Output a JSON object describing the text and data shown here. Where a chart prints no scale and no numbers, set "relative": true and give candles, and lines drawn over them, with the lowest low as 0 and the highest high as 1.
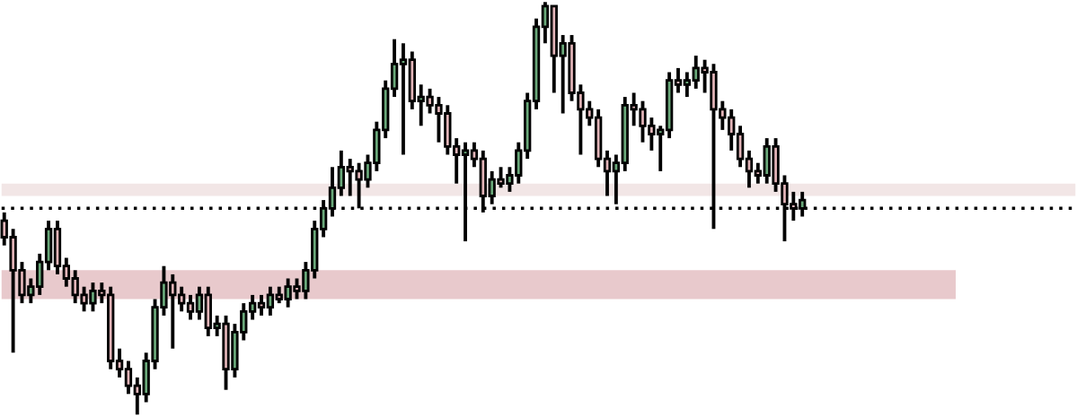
{
  "chart_data": {
    "type": "candlestick",
    "relative": true,
    "categories": [
      null,
      null,
      null,
      null,
      null,
      null,
      null,
      null,
      null,
      null,
      null,
      null,
      null,
      null,
      null,
      null,
      null,
      null,
      null,
      null,
      null,
      null,
      null,
      null,
      null,
      null,
      null,
      null,
      null,
      null,
      null,
      null,
      null,
      null,
      null,
      null,
      null,
      null,
      null,
      null,
      null,
      null,
      null,
      null,
      null,
      null,
      null,
      null,
      null,
      null,
      null,
      null,
      null,
      null,
      null,
      null,
      null,
      null,
      null,
      null,
      null,
      null,
      null,
      null,
      null,
      null,
      null,
      null,
      null,
      null,
      null,
      null,
      null,
      null,
      null,
      null,
      null,
      null,
      null,
      null,
      null,
      null,
      null,
      null,
      null,
      null,
      null,
      null,
      null,
      null,
      null
    ],
    "ohlc": [
      [
        0.47,
        0.49,
        0.41,
        0.43
      ],
      [
        0.43,
        0.45,
        0.15,
        0.35
      ],
      [
        0.35,
        0.37,
        0.27,
        0.29
      ],
      [
        0.29,
        0.33,
        0.27,
        0.31
      ],
      [
        0.31,
        0.39,
        0.29,
        0.37
      ],
      [
        0.37,
        0.47,
        0.35,
        0.45
      ],
      [
        0.45,
        0.47,
        0.34,
        0.36
      ],
      [
        0.36,
        0.38,
        0.31,
        0.33
      ],
      [
        0.33,
        0.35,
        0.27,
        0.29
      ],
      [
        0.29,
        0.31,
        0.25,
        0.27
      ],
      [
        0.27,
        0.32,
        0.25,
        0.3
      ],
      [
        0.3,
        0.32,
        0.27,
        0.29
      ],
      [
        0.29,
        0.31,
        0.11,
        0.13
      ],
      [
        0.13,
        0.16,
        0.09,
        0.11
      ],
      [
        0.11,
        0.13,
        0.05,
        0.07
      ],
      [
        0.07,
        0.09,
        0.0,
        0.05
      ],
      [
        0.05,
        0.15,
        0.03,
        0.13
      ],
      [
        0.13,
        0.28,
        0.11,
        0.26
      ],
      [
        0.26,
        0.36,
        0.24,
        0.32
      ],
      [
        0.32,
        0.34,
        0.16,
        0.29
      ],
      [
        0.29,
        0.31,
        0.25,
        0.27
      ],
      [
        0.27,
        0.29,
        0.23,
        0.25
      ],
      [
        0.25,
        0.31,
        0.23,
        0.29
      ],
      [
        0.29,
        0.31,
        0.19,
        0.21
      ],
      [
        0.21,
        0.24,
        0.19,
        0.22
      ],
      [
        0.22,
        0.24,
        0.06,
        0.11
      ],
      [
        0.11,
        0.22,
        0.09,
        0.2
      ],
      [
        0.2,
        0.27,
        0.18,
        0.25
      ],
      [
        0.25,
        0.29,
        0.23,
        0.27
      ],
      [
        0.27,
        0.29,
        0.24,
        0.26
      ],
      [
        0.26,
        0.31,
        0.24,
        0.29
      ],
      [
        0.29,
        0.31,
        0.27,
        0.28
      ],
      [
        0.28,
        0.33,
        0.26,
        0.31
      ],
      [
        0.31,
        0.33,
        0.28,
        0.3
      ],
      [
        0.3,
        0.37,
        0.28,
        0.35
      ],
      [
        0.35,
        0.47,
        0.33,
        0.45
      ],
      [
        0.45,
        0.52,
        0.43,
        0.5
      ],
      [
        0.5,
        0.6,
        0.48,
        0.55
      ],
      [
        0.55,
        0.64,
        0.53,
        0.6
      ],
      [
        0.6,
        0.62,
        0.53,
        0.59
      ],
      [
        0.59,
        0.61,
        0.5,
        0.57
      ],
      [
        0.57,
        0.63,
        0.55,
        0.61
      ],
      [
        0.61,
        0.71,
        0.59,
        0.69
      ],
      [
        0.69,
        0.81,
        0.67,
        0.79
      ],
      [
        0.79,
        0.91,
        0.77,
        0.85
      ],
      [
        0.85,
        0.9,
        0.63,
        0.86
      ],
      [
        0.86,
        0.88,
        0.74,
        0.76
      ],
      [
        0.76,
        0.8,
        0.7,
        0.77
      ],
      [
        0.77,
        0.79,
        0.73,
        0.75
      ],
      [
        0.75,
        0.77,
        0.66,
        0.73
      ],
      [
        0.73,
        0.75,
        0.63,
        0.65
      ],
      [
        0.65,
        0.67,
        0.56,
        0.63
      ],
      [
        0.63,
        0.66,
        0.42,
        0.64
      ],
      [
        0.64,
        0.66,
        0.6,
        0.62
      ],
      [
        0.62,
        0.64,
        0.49,
        0.53
      ],
      [
        0.53,
        0.59,
        0.51,
        0.57
      ],
      [
        0.57,
        0.6,
        0.55,
        0.56
      ],
      [
        0.56,
        0.6,
        0.54,
        0.58
      ],
      [
        0.58,
        0.66,
        0.56,
        0.64
      ],
      [
        0.64,
        0.78,
        0.62,
        0.76
      ],
      [
        0.76,
        0.96,
        0.74,
        0.94
      ],
      [
        0.94,
        1.0,
        0.9,
        0.99
      ],
      [
        0.99,
        0.99,
        0.78,
        0.87
      ],
      [
        0.87,
        0.92,
        0.73,
        0.9
      ],
      [
        0.9,
        0.92,
        0.76,
        0.78
      ],
      [
        0.78,
        0.8,
        0.63,
        0.74
      ],
      [
        0.74,
        0.76,
        0.7,
        0.72
      ],
      [
        0.72,
        0.74,
        0.6,
        0.62
      ],
      [
        0.62,
        0.64,
        0.53,
        0.59
      ],
      [
        0.59,
        0.63,
        0.51,
        0.61
      ],
      [
        0.61,
        0.77,
        0.59,
        0.75
      ],
      [
        0.75,
        0.78,
        0.7,
        0.74
      ],
      [
        0.74,
        0.76,
        0.66,
        0.7
      ],
      [
        0.7,
        0.72,
        0.64,
        0.68
      ],
      [
        0.68,
        0.7,
        0.59,
        0.69
      ],
      [
        0.69,
        0.83,
        0.67,
        0.81
      ],
      [
        0.81,
        0.84,
        0.78,
        0.8
      ],
      [
        0.8,
        0.83,
        0.77,
        0.81
      ],
      [
        0.81,
        0.87,
        0.79,
        0.84
      ],
      [
        0.84,
        0.86,
        0.78,
        0.83
      ],
      [
        0.83,
        0.85,
        0.45,
        0.74
      ],
      [
        0.74,
        0.76,
        0.69,
        0.72
      ],
      [
        0.72,
        0.74,
        0.64,
        0.68
      ],
      [
        0.68,
        0.7,
        0.6,
        0.62
      ],
      [
        0.62,
        0.64,
        0.55,
        0.59
      ],
      [
        0.59,
        0.61,
        0.56,
        0.58
      ],
      [
        0.58,
        0.67,
        0.56,
        0.65
      ],
      [
        0.65,
        0.67,
        0.54,
        0.56
      ],
      [
        0.56,
        0.58,
        0.42,
        0.51
      ],
      [
        0.51,
        0.54,
        0.47,
        0.5
      ],
      [
        0.5,
        0.54,
        0.48,
        0.52
      ]
    ],
    "colors": [
      "#e3b5b9",
      "#e3b5b9",
      "#e3b5b9",
      "#6aa97a",
      "#6aa97a",
      "#6aa97a",
      "#e3b5b9",
      "#e3b5b9",
      "#e3b5b9",
      "#e3b5b9",
      "#6aa97a",
      "#e3b5b9",
      "#e3b5b9",
      "#e3b5b9",
      "#e3b5b9",
      "#e3b5b9",
      "#6aa97a",
      "#6aa97a",
      "#6aa97a",
      "#e3b5b9",
      "#e3b5b9",
      "#e3b5b9",
      "#6aa97a",
      "#e3b5b9",
      "#6aa97a",
      "#e3b5b9",
      "#6aa97a",
      "#6aa97a",
      "#6aa97a",
      "#e3b5b9",
      "#6aa97a",
      "#e3b5b9",
      "#6aa97a",
      "#e3b5b9",
      "#6aa97a",
      "#6aa97a",
      "#6aa97a",
      "#6aa97a",
      "#6aa97a",
      "#e3b5b9",
      "#e3b5b9",
      "#6aa97a",
      "#6aa97a",
      "#6aa97a",
      "#6aa97a",
      "#6aa97a",
      "#e3b5b9",
      "#6aa97a",
      "#e3b5b9",
      "#e3b5b9",
      "#e3b5b9",
      "#e3b5b9",
      "#6aa97a",
      "#e3b5b9",
      "#e3b5b9",
      "#6aa97a",
      "#e3b5b9",
      "#6aa97a",
      "#6aa97a",
      "#6aa97a",
      "#6aa97a",
      "#6aa97a",
      "#e3b5b9",
      "#6aa97a",
      "#e3b5b9",
      "#e3b5b9",
      "#e3b5b9",
      "#e3b5b9",
      "#e3b5b9",
      "#6aa97a",
      "#6aa97a",
      "#e3b5b9",
      "#e3b5b9",
      "#e3b5b9",
      "#6aa97a",
      "#6aa97a",
      "#e3b5b9",
      "#6aa97a",
      "#6aa97a",
      "#e3b5b9",
      "#e3b5b9",
      "#e3b5b9",
      "#e3b5b9",
      "#e3b5b9",
      "#e3b5b9",
      "#e3b5b9",
      "#6aa97a",
      "#e3b5b9",
      "#e3b5b9",
      "#e3b5b9",
      "#6aa97a"
    ],
    "bands": [
      {
        "axis": "y",
        "from": 0.53,
        "to": 0.56,
        "color": "#f2e6e6"
      },
      {
        "axis": "y",
        "from": 0.28,
        "to": 0.35,
        "color": "#e8c9cc"
      }
    ],
    "ref_lines": [
      {
        "axis": "y",
        "value": 0.5,
        "color": "#000000",
        "line_style": "dotted"
      }
    ]
  }
}
